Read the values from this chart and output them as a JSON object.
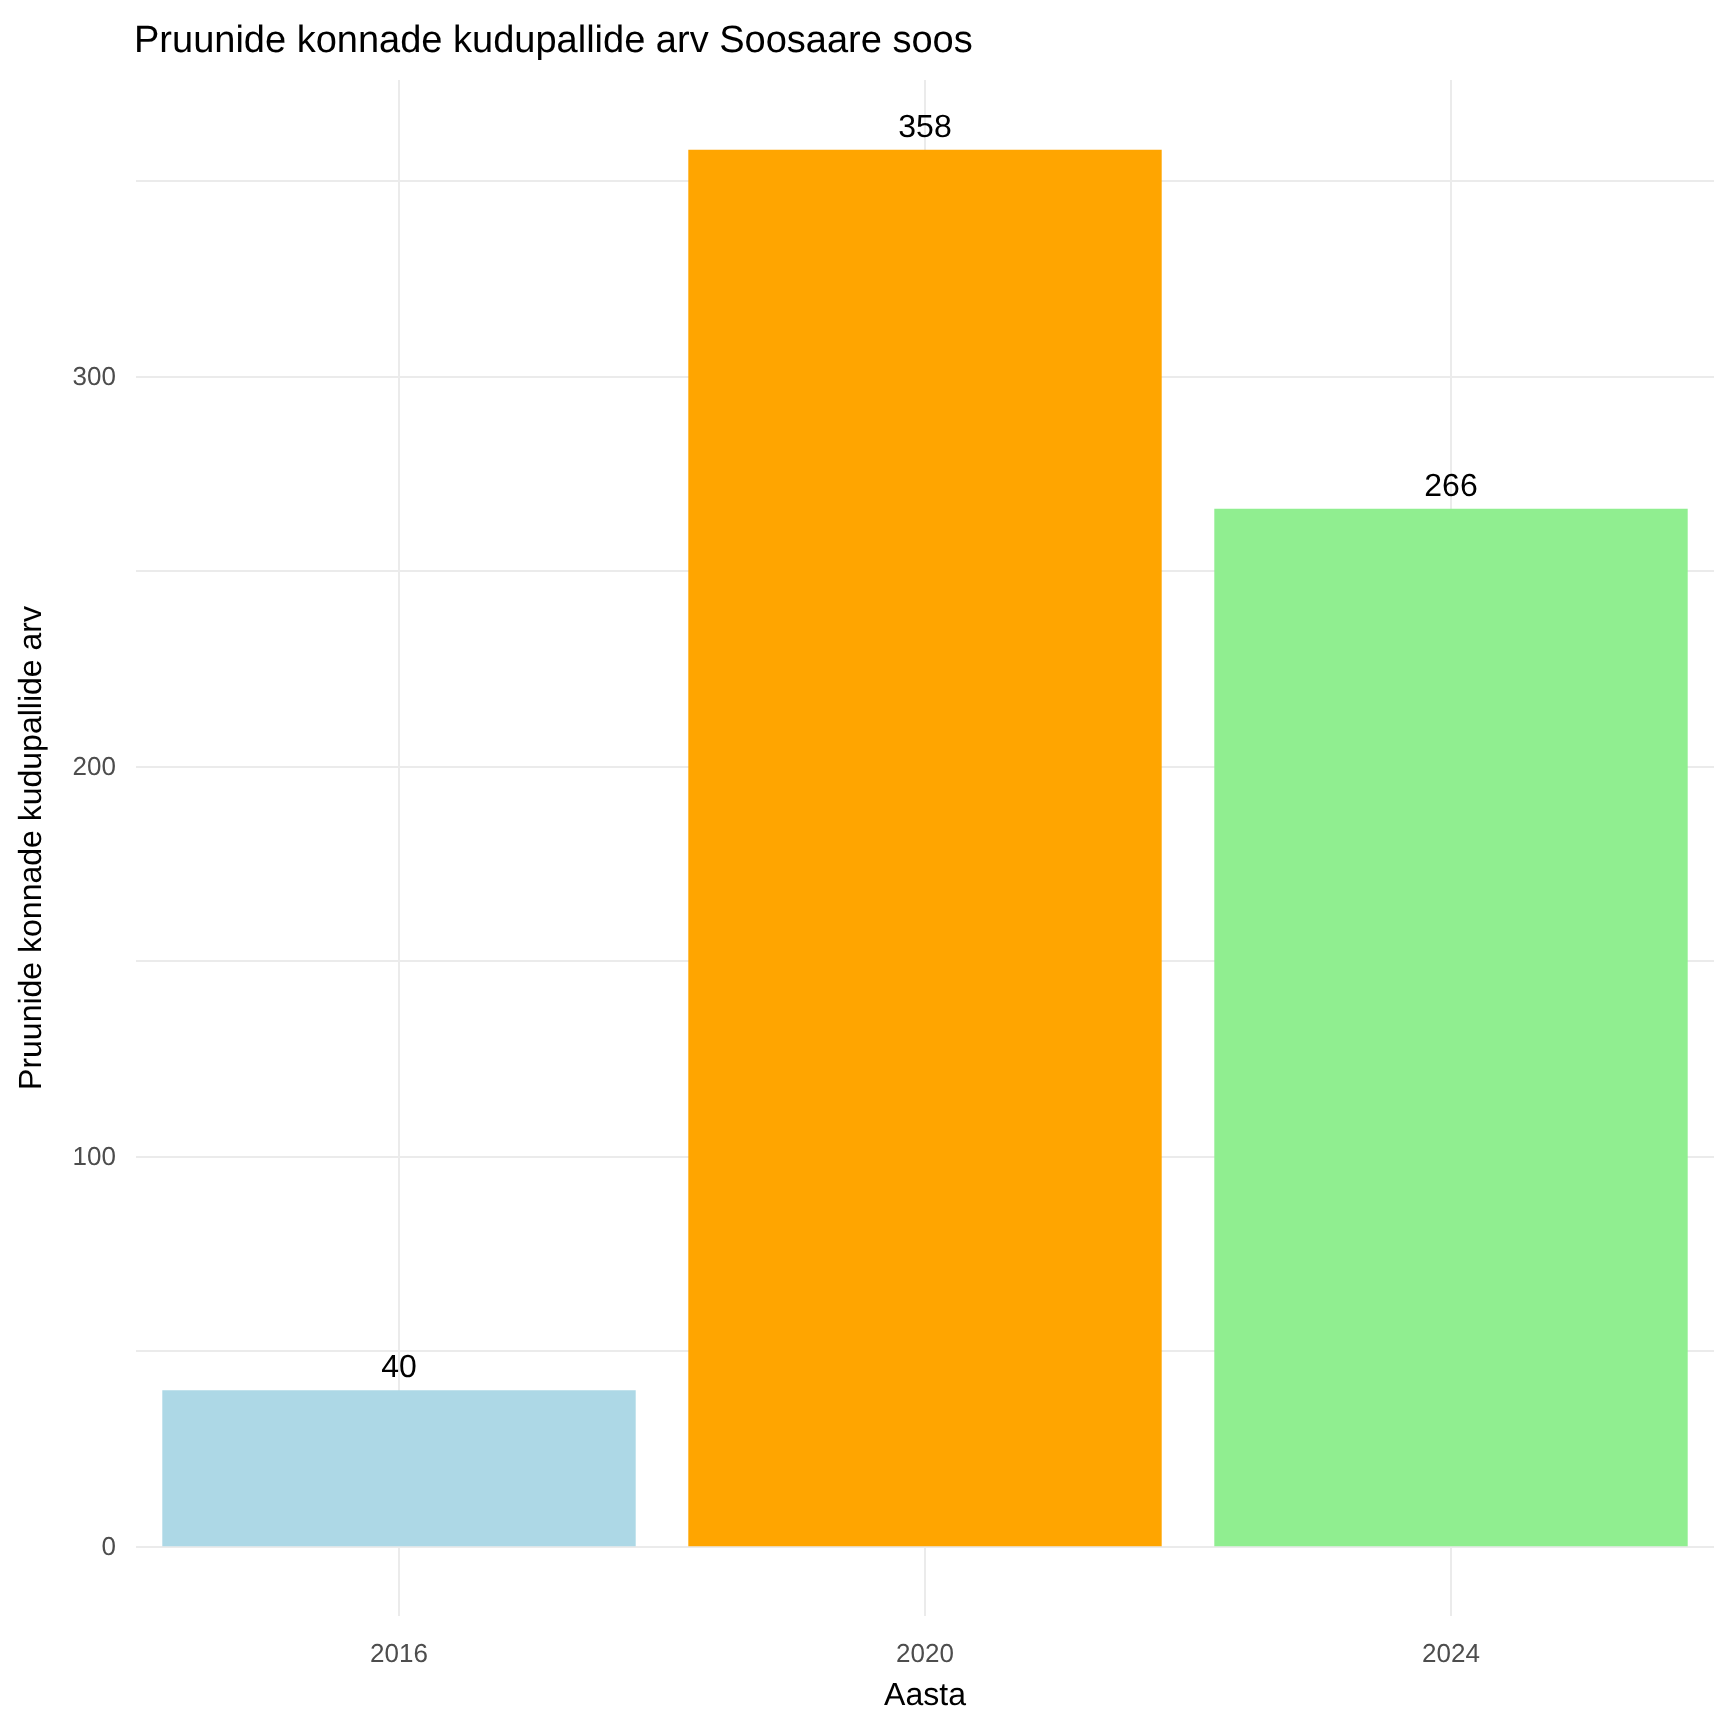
{
  "chart_data": {
    "type": "bar",
    "title": "Pruunide konnade kudupallide arv Soosaare soos",
    "xlabel": "Aasta",
    "ylabel": "Pruunide konnade kudupallide arv",
    "categories": [
      "2016",
      "2020",
      "2024"
    ],
    "values": [
      40,
      358,
      266
    ],
    "colors": [
      "#add8e6",
      "#ffa500",
      "#90ee90"
    ],
    "ylim": [
      -17.9,
      375.9
    ],
    "yticks": [
      0,
      {
        "value": 50,
        "label": null
      },
      100,
      {
        "value": 150,
        "label": null
      },
      200,
      {
        "value": 250,
        "label": null
      },
      300,
      {
        "value": 350,
        "label": null
      }
    ],
    "grid": true,
    "data_labels": true
  }
}
